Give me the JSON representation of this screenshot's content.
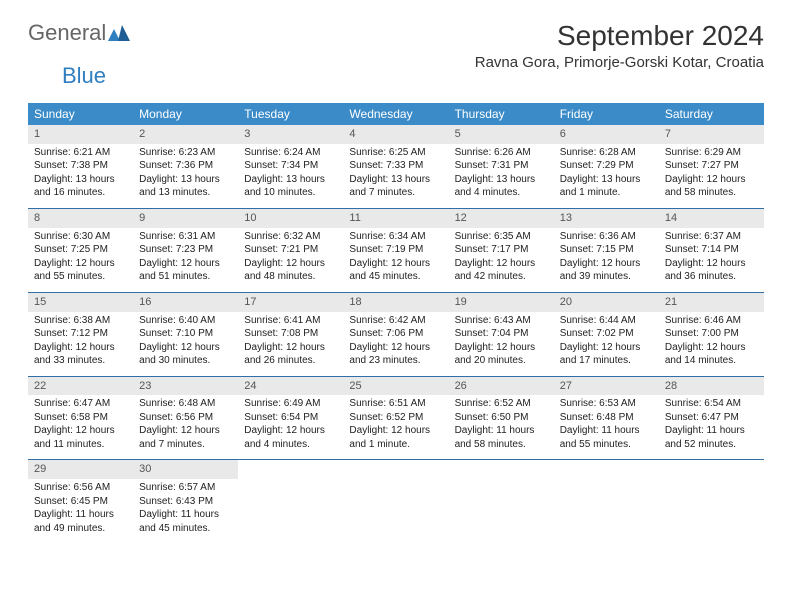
{
  "logo": {
    "text1": "General",
    "text2": "Blue"
  },
  "title": "September 2024",
  "location": "Ravna Gora, Primorje-Gorski Kotar, Croatia",
  "colors": {
    "header_bg": "#3b8bc8",
    "header_text": "#ffffff",
    "daynum_bg": "#e9e9e9",
    "row_border": "#2f6fa6",
    "logo_accent": "#2f7fc1"
  },
  "day_headers": [
    "Sunday",
    "Monday",
    "Tuesday",
    "Wednesday",
    "Thursday",
    "Friday",
    "Saturday"
  ],
  "weeks": [
    [
      {
        "n": "1",
        "sr": "Sunrise: 6:21 AM",
        "ss": "Sunset: 7:38 PM",
        "d1": "Daylight: 13 hours",
        "d2": "and 16 minutes."
      },
      {
        "n": "2",
        "sr": "Sunrise: 6:23 AM",
        "ss": "Sunset: 7:36 PM",
        "d1": "Daylight: 13 hours",
        "d2": "and 13 minutes."
      },
      {
        "n": "3",
        "sr": "Sunrise: 6:24 AM",
        "ss": "Sunset: 7:34 PM",
        "d1": "Daylight: 13 hours",
        "d2": "and 10 minutes."
      },
      {
        "n": "4",
        "sr": "Sunrise: 6:25 AM",
        "ss": "Sunset: 7:33 PM",
        "d1": "Daylight: 13 hours",
        "d2": "and 7 minutes."
      },
      {
        "n": "5",
        "sr": "Sunrise: 6:26 AM",
        "ss": "Sunset: 7:31 PM",
        "d1": "Daylight: 13 hours",
        "d2": "and 4 minutes."
      },
      {
        "n": "6",
        "sr": "Sunrise: 6:28 AM",
        "ss": "Sunset: 7:29 PM",
        "d1": "Daylight: 13 hours",
        "d2": "and 1 minute."
      },
      {
        "n": "7",
        "sr": "Sunrise: 6:29 AM",
        "ss": "Sunset: 7:27 PM",
        "d1": "Daylight: 12 hours",
        "d2": "and 58 minutes."
      }
    ],
    [
      {
        "n": "8",
        "sr": "Sunrise: 6:30 AM",
        "ss": "Sunset: 7:25 PM",
        "d1": "Daylight: 12 hours",
        "d2": "and 55 minutes."
      },
      {
        "n": "9",
        "sr": "Sunrise: 6:31 AM",
        "ss": "Sunset: 7:23 PM",
        "d1": "Daylight: 12 hours",
        "d2": "and 51 minutes."
      },
      {
        "n": "10",
        "sr": "Sunrise: 6:32 AM",
        "ss": "Sunset: 7:21 PM",
        "d1": "Daylight: 12 hours",
        "d2": "and 48 minutes."
      },
      {
        "n": "11",
        "sr": "Sunrise: 6:34 AM",
        "ss": "Sunset: 7:19 PM",
        "d1": "Daylight: 12 hours",
        "d2": "and 45 minutes."
      },
      {
        "n": "12",
        "sr": "Sunrise: 6:35 AM",
        "ss": "Sunset: 7:17 PM",
        "d1": "Daylight: 12 hours",
        "d2": "and 42 minutes."
      },
      {
        "n": "13",
        "sr": "Sunrise: 6:36 AM",
        "ss": "Sunset: 7:15 PM",
        "d1": "Daylight: 12 hours",
        "d2": "and 39 minutes."
      },
      {
        "n": "14",
        "sr": "Sunrise: 6:37 AM",
        "ss": "Sunset: 7:14 PM",
        "d1": "Daylight: 12 hours",
        "d2": "and 36 minutes."
      }
    ],
    [
      {
        "n": "15",
        "sr": "Sunrise: 6:38 AM",
        "ss": "Sunset: 7:12 PM",
        "d1": "Daylight: 12 hours",
        "d2": "and 33 minutes."
      },
      {
        "n": "16",
        "sr": "Sunrise: 6:40 AM",
        "ss": "Sunset: 7:10 PM",
        "d1": "Daylight: 12 hours",
        "d2": "and 30 minutes."
      },
      {
        "n": "17",
        "sr": "Sunrise: 6:41 AM",
        "ss": "Sunset: 7:08 PM",
        "d1": "Daylight: 12 hours",
        "d2": "and 26 minutes."
      },
      {
        "n": "18",
        "sr": "Sunrise: 6:42 AM",
        "ss": "Sunset: 7:06 PM",
        "d1": "Daylight: 12 hours",
        "d2": "and 23 minutes."
      },
      {
        "n": "19",
        "sr": "Sunrise: 6:43 AM",
        "ss": "Sunset: 7:04 PM",
        "d1": "Daylight: 12 hours",
        "d2": "and 20 minutes."
      },
      {
        "n": "20",
        "sr": "Sunrise: 6:44 AM",
        "ss": "Sunset: 7:02 PM",
        "d1": "Daylight: 12 hours",
        "d2": "and 17 minutes."
      },
      {
        "n": "21",
        "sr": "Sunrise: 6:46 AM",
        "ss": "Sunset: 7:00 PM",
        "d1": "Daylight: 12 hours",
        "d2": "and 14 minutes."
      }
    ],
    [
      {
        "n": "22",
        "sr": "Sunrise: 6:47 AM",
        "ss": "Sunset: 6:58 PM",
        "d1": "Daylight: 12 hours",
        "d2": "and 11 minutes."
      },
      {
        "n": "23",
        "sr": "Sunrise: 6:48 AM",
        "ss": "Sunset: 6:56 PM",
        "d1": "Daylight: 12 hours",
        "d2": "and 7 minutes."
      },
      {
        "n": "24",
        "sr": "Sunrise: 6:49 AM",
        "ss": "Sunset: 6:54 PM",
        "d1": "Daylight: 12 hours",
        "d2": "and 4 minutes."
      },
      {
        "n": "25",
        "sr": "Sunrise: 6:51 AM",
        "ss": "Sunset: 6:52 PM",
        "d1": "Daylight: 12 hours",
        "d2": "and 1 minute."
      },
      {
        "n": "26",
        "sr": "Sunrise: 6:52 AM",
        "ss": "Sunset: 6:50 PM",
        "d1": "Daylight: 11 hours",
        "d2": "and 58 minutes."
      },
      {
        "n": "27",
        "sr": "Sunrise: 6:53 AM",
        "ss": "Sunset: 6:48 PM",
        "d1": "Daylight: 11 hours",
        "d2": "and 55 minutes."
      },
      {
        "n": "28",
        "sr": "Sunrise: 6:54 AM",
        "ss": "Sunset: 6:47 PM",
        "d1": "Daylight: 11 hours",
        "d2": "and 52 minutes."
      }
    ],
    [
      {
        "n": "29",
        "sr": "Sunrise: 6:56 AM",
        "ss": "Sunset: 6:45 PM",
        "d1": "Daylight: 11 hours",
        "d2": "and 49 minutes."
      },
      {
        "n": "30",
        "sr": "Sunrise: 6:57 AM",
        "ss": "Sunset: 6:43 PM",
        "d1": "Daylight: 11 hours",
        "d2": "and 45 minutes."
      },
      {
        "empty": true
      },
      {
        "empty": true
      },
      {
        "empty": true
      },
      {
        "empty": true
      },
      {
        "empty": true
      }
    ]
  ]
}
